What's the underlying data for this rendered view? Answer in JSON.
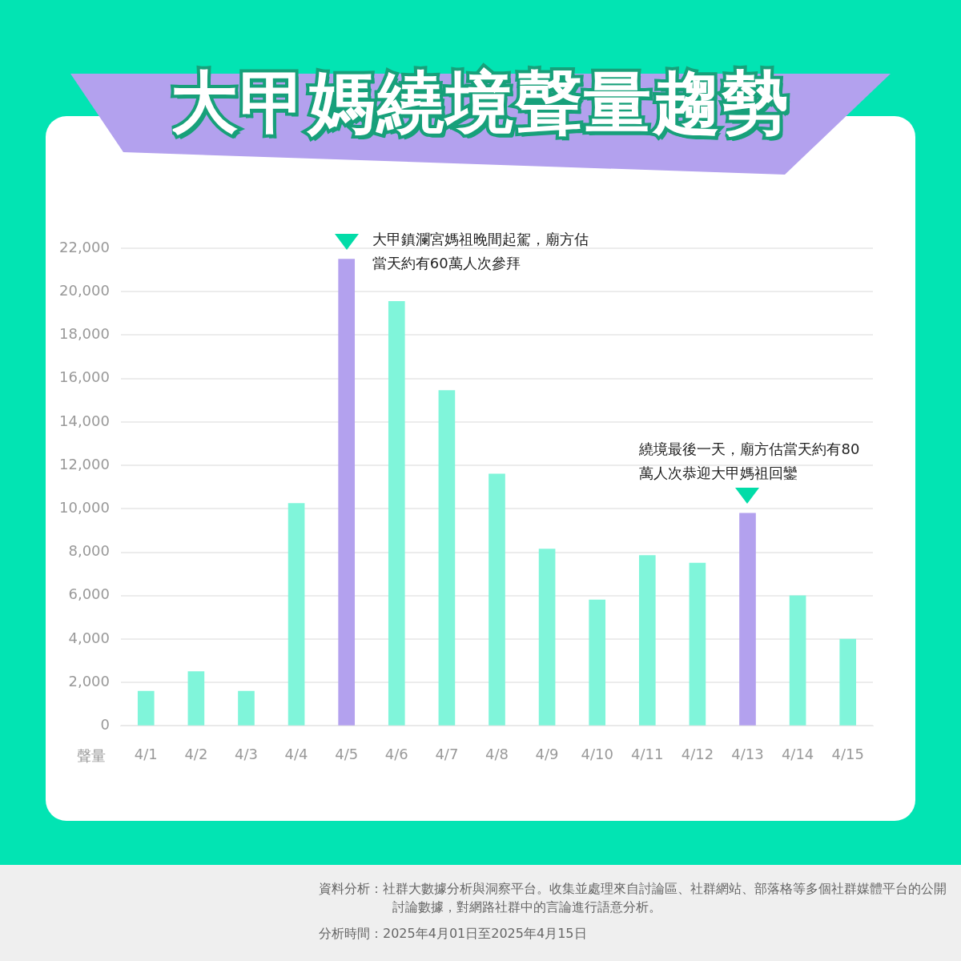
{
  "chart_data": {
    "type": "bar",
    "title": "大甲媽繞境聲量趨勢",
    "ylabel": "聲量",
    "categories": [
      "4/1",
      "4/2",
      "4/3",
      "4/4",
      "4/5",
      "4/6",
      "4/7",
      "4/8",
      "4/9",
      "4/10",
      "4/11",
      "4/12",
      "4/13",
      "4/14",
      "4/15"
    ],
    "values": [
      1600,
      2500,
      1600,
      10250,
      21500,
      19550,
      15450,
      11600,
      8150,
      5800,
      7850,
      7500,
      9800,
      6000,
      4000
    ],
    "colors": [
      "#80f5da",
      "#80f5da",
      "#80f5da",
      "#80f5da",
      "#b3a1ee",
      "#80f5da",
      "#80f5da",
      "#80f5da",
      "#80f5da",
      "#80f5da",
      "#80f5da",
      "#80f5da",
      "#b3a1ee",
      "#80f5da",
      "#80f5da"
    ],
    "ylim": [
      0,
      22000
    ],
    "yticks": [
      {
        "value": 0,
        "label": "0"
      },
      {
        "value": 2000,
        "label": "2,000"
      },
      {
        "value": 4000,
        "label": "4,000"
      },
      {
        "value": 6000,
        "label": "6,000"
      },
      {
        "value": 8000,
        "label": "8,000"
      },
      {
        "value": 10000,
        "label": "10,000"
      },
      {
        "value": 12000,
        "label": "12,000"
      },
      {
        "value": 14000,
        "label": "14,000"
      },
      {
        "value": 16000,
        "label": "16,000"
      },
      {
        "value": 18000,
        "label": "18,000"
      },
      {
        "value": 20000,
        "label": "20,000"
      },
      {
        "value": 22000,
        "label": "22,000"
      }
    ],
    "grid": "y",
    "legend": false,
    "annotations": [
      {
        "text": "大甲鎮瀾宮媽祖晚間起駕，廟方估當天約有60萬人次參拜",
        "x": "4/5",
        "y": 21500
      },
      {
        "text": "繞境最後一天，廟方估當天約有80萬人次恭迎大甲媽祖回鑾",
        "x": "4/13",
        "y": 9800
      },
      "資料分析：社群大數據分析與洞察平台。收集並處理來自討論區、社群網站、部落格等多個社群媒體平台的公開討論數據，對網路社群中的言論進行語意分析。",
      "分析時間：2025年4月01日至2025年4月15日"
    ]
  }
}
